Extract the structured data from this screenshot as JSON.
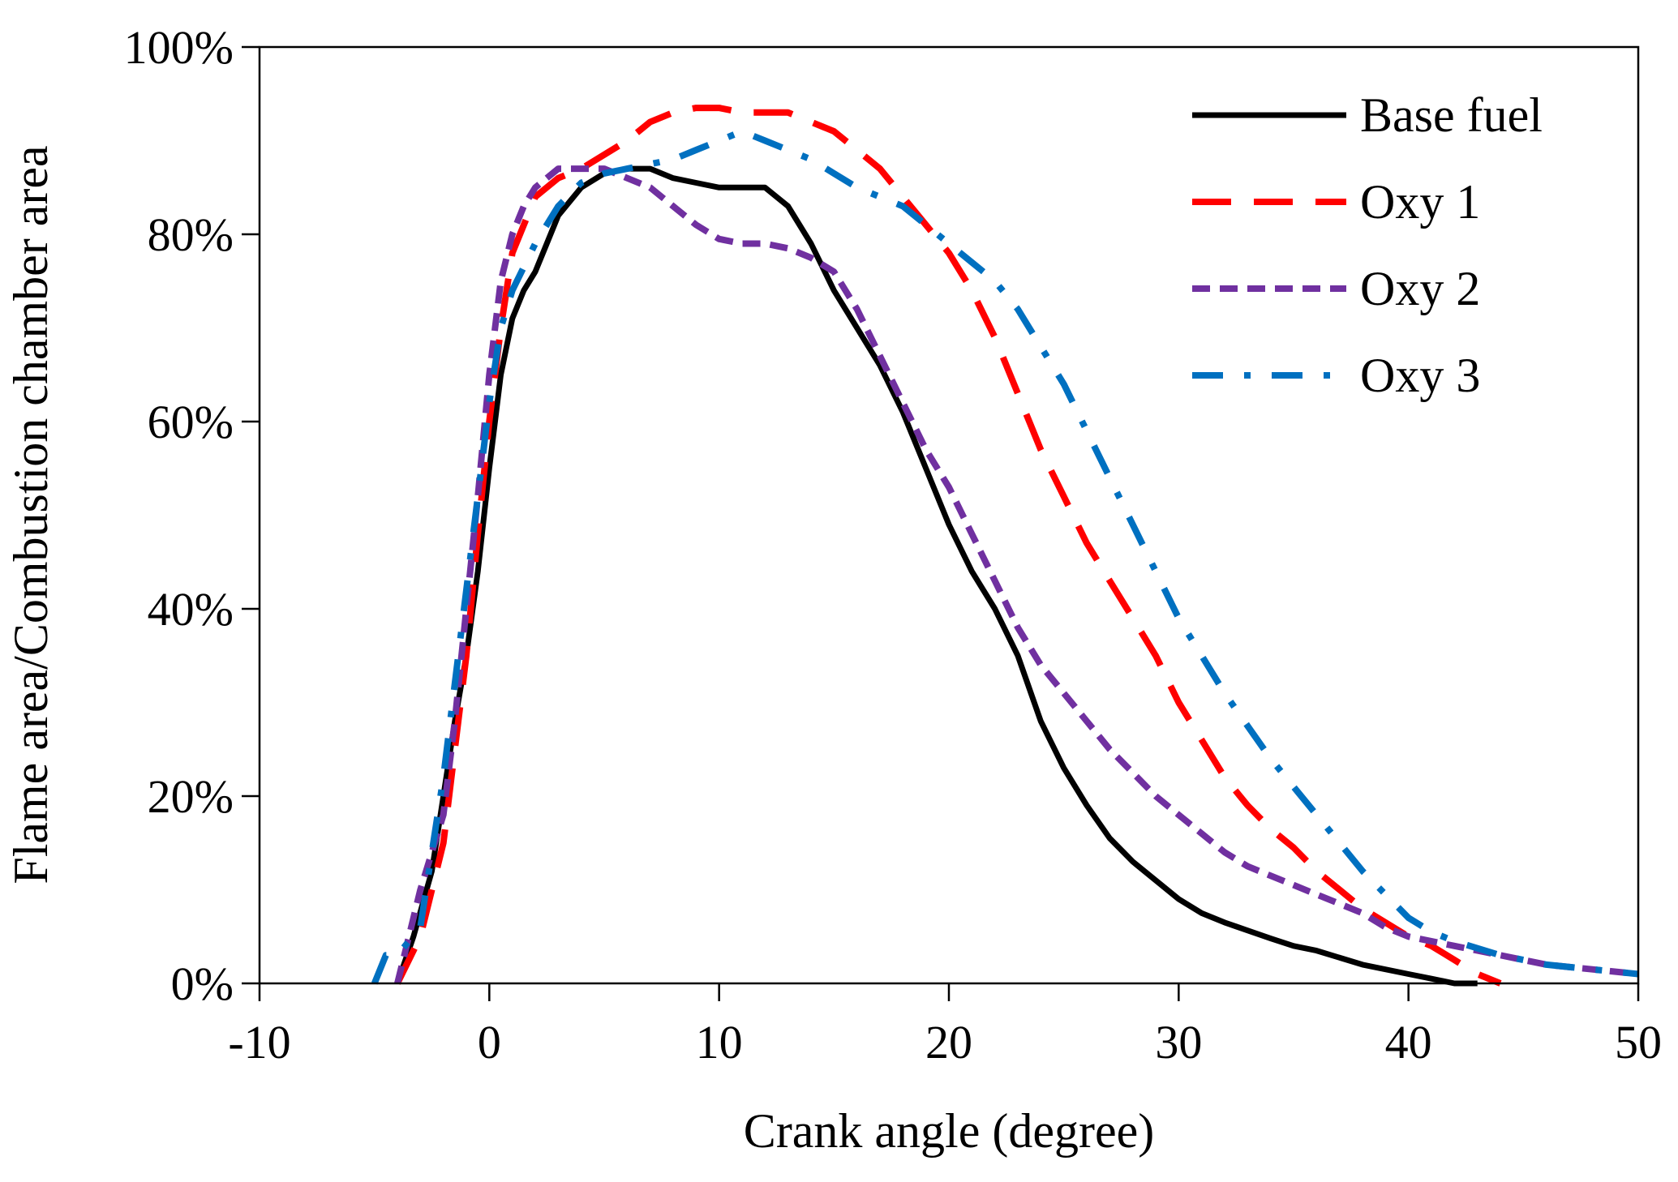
{
  "chart_data": {
    "type": "line",
    "title": "",
    "xlabel": "Crank angle (degree)",
    "ylabel": "Flame area/Combustion chamber area",
    "xlim": [
      -10,
      50
    ],
    "ylim": [
      0,
      100
    ],
    "xticks": [
      -10,
      0,
      10,
      20,
      30,
      40,
      50
    ],
    "yticks": [
      0,
      20,
      40,
      60,
      80,
      100
    ],
    "xtick_labels": [
      "-10",
      "0",
      "10",
      "20",
      "30",
      "40",
      "50"
    ],
    "ytick_labels": [
      "0%",
      "20%",
      "40%",
      "60%",
      "80%",
      "100%"
    ],
    "grid": false,
    "legend_position": "top-right",
    "series": [
      {
        "name": "Base fuel",
        "color": "#000000",
        "dash": "solid",
        "points": [
          [
            -4,
            0
          ],
          [
            -3.3,
            5
          ],
          [
            -2.5,
            12
          ],
          [
            -2,
            20
          ],
          [
            -1.5,
            28
          ],
          [
            -1,
            35
          ],
          [
            -0.5,
            44
          ],
          [
            0,
            55
          ],
          [
            0.5,
            65
          ],
          [
            1,
            71
          ],
          [
            1.5,
            74
          ],
          [
            2,
            76
          ],
          [
            2.5,
            79
          ],
          [
            3,
            82
          ],
          [
            4,
            85
          ],
          [
            5,
            86.5
          ],
          [
            6,
            87
          ],
          [
            7,
            87
          ],
          [
            8,
            86
          ],
          [
            9,
            85.5
          ],
          [
            10,
            85
          ],
          [
            11,
            85
          ],
          [
            12,
            85
          ],
          [
            13,
            83
          ],
          [
            14,
            79
          ],
          [
            15,
            74
          ],
          [
            16,
            70
          ],
          [
            17,
            66
          ],
          [
            18,
            61
          ],
          [
            19,
            55
          ],
          [
            20,
            49
          ],
          [
            21,
            44
          ],
          [
            22,
            40
          ],
          [
            23,
            35
          ],
          [
            24,
            28
          ],
          [
            25,
            23
          ],
          [
            26,
            19
          ],
          [
            27,
            15.5
          ],
          [
            28,
            13
          ],
          [
            30,
            9
          ],
          [
            31,
            7.5
          ],
          [
            32,
            6.5
          ],
          [
            34,
            4.8
          ],
          [
            35,
            4
          ],
          [
            36,
            3.5
          ],
          [
            38,
            2
          ],
          [
            40,
            1
          ],
          [
            41,
            0.5
          ],
          [
            42,
            0
          ],
          [
            43,
            0
          ]
        ]
      },
      {
        "name": "Oxy 1",
        "color": "#ff0000",
        "dash": "long-dash",
        "points": [
          [
            -4,
            0
          ],
          [
            -3,
            5
          ],
          [
            -2,
            15
          ],
          [
            -1.5,
            25
          ],
          [
            -1,
            35
          ],
          [
            -0.5,
            48
          ],
          [
            0,
            60
          ],
          [
            0.5,
            70
          ],
          [
            1,
            78
          ],
          [
            2,
            84
          ],
          [
            3,
            86
          ],
          [
            4,
            87
          ],
          [
            5,
            88.5
          ],
          [
            6,
            90
          ],
          [
            7,
            92
          ],
          [
            8,
            93
          ],
          [
            9,
            93.5
          ],
          [
            10,
            93.5
          ],
          [
            11,
            93
          ],
          [
            12,
            93
          ],
          [
            13,
            93
          ],
          [
            14,
            92
          ],
          [
            15,
            91
          ],
          [
            16,
            89
          ],
          [
            17,
            87
          ],
          [
            18,
            84
          ],
          [
            19,
            81
          ],
          [
            20,
            78
          ],
          [
            21,
            74
          ],
          [
            22,
            69
          ],
          [
            23,
            63
          ],
          [
            24,
            57
          ],
          [
            25,
            52
          ],
          [
            26,
            47
          ],
          [
            27,
            43
          ],
          [
            28,
            39
          ],
          [
            29,
            35
          ],
          [
            30,
            30
          ],
          [
            31,
            26
          ],
          [
            32,
            22
          ],
          [
            33,
            19
          ],
          [
            34,
            16.5
          ],
          [
            35,
            14.5
          ],
          [
            36,
            12
          ],
          [
            37,
            10
          ],
          [
            38,
            8
          ],
          [
            39,
            6.5
          ],
          [
            40,
            5
          ],
          [
            41,
            4
          ],
          [
            42,
            2.5
          ],
          [
            43,
            1
          ],
          [
            44,
            0
          ]
        ]
      },
      {
        "name": "Oxy 2",
        "color": "#7030a0",
        "dash": "short-dash",
        "points": [
          [
            -4,
            0
          ],
          [
            -3.5,
            5
          ],
          [
            -3,
            10
          ],
          [
            -2,
            18
          ],
          [
            -1.5,
            28
          ],
          [
            -1,
            40
          ],
          [
            -0.5,
            52
          ],
          [
            0,
            65
          ],
          [
            0.5,
            75
          ],
          [
            1,
            80
          ],
          [
            1.5,
            83
          ],
          [
            2,
            85
          ],
          [
            3,
            87
          ],
          [
            4,
            87
          ],
          [
            5,
            87
          ],
          [
            6,
            86
          ],
          [
            7,
            85
          ],
          [
            8,
            83
          ],
          [
            9,
            81
          ],
          [
            10,
            79.5
          ],
          [
            11,
            79
          ],
          [
            12,
            79
          ],
          [
            13,
            78.5
          ],
          [
            14,
            77.5
          ],
          [
            15,
            76
          ],
          [
            16,
            72
          ],
          [
            17,
            67
          ],
          [
            18,
            62
          ],
          [
            19,
            57
          ],
          [
            20,
            53
          ],
          [
            21,
            48
          ],
          [
            22,
            43
          ],
          [
            23,
            38
          ],
          [
            24,
            34
          ],
          [
            25,
            31
          ],
          [
            26,
            28
          ],
          [
            27,
            25
          ],
          [
            28,
            22.5
          ],
          [
            29,
            20
          ],
          [
            30,
            18
          ],
          [
            31,
            16
          ],
          [
            32,
            14
          ],
          [
            33,
            12.5
          ],
          [
            34,
            11.5
          ],
          [
            35,
            10.5
          ],
          [
            36,
            9.5
          ],
          [
            37,
            8.5
          ],
          [
            38,
            7.5
          ],
          [
            39,
            6
          ],
          [
            40,
            5
          ],
          [
            42,
            4
          ],
          [
            44,
            3
          ],
          [
            46,
            2
          ],
          [
            48,
            1.5
          ],
          [
            50,
            1
          ]
        ]
      },
      {
        "name": "Oxy 3",
        "color": "#0070c0",
        "dash": "dash-dot",
        "points": [
          [
            -5,
            0
          ],
          [
            -4.5,
            3
          ],
          [
            -4,
            3
          ],
          [
            -3,
            6
          ],
          [
            -2.5,
            14
          ],
          [
            -2,
            22
          ],
          [
            -1.5,
            32
          ],
          [
            -1,
            42
          ],
          [
            -0.5,
            52
          ],
          [
            0,
            62
          ],
          [
            0.5,
            70
          ],
          [
            1,
            74
          ],
          [
            2,
            79
          ],
          [
            3,
            83
          ],
          [
            4,
            85.5
          ],
          [
            5,
            86.5
          ],
          [
            6,
            87
          ],
          [
            7,
            87.5
          ],
          [
            8,
            88
          ],
          [
            9,
            89
          ],
          [
            10,
            90
          ],
          [
            11,
            91
          ],
          [
            12,
            90
          ],
          [
            13,
            89
          ],
          [
            14,
            88
          ],
          [
            15,
            86.5
          ],
          [
            16,
            85
          ],
          [
            17,
            84
          ],
          [
            18,
            83
          ],
          [
            19,
            81
          ],
          [
            20,
            79
          ],
          [
            21,
            77
          ],
          [
            22,
            75
          ],
          [
            23,
            72
          ],
          [
            24,
            68
          ],
          [
            25,
            64
          ],
          [
            26,
            59
          ],
          [
            27,
            54
          ],
          [
            28,
            49
          ],
          [
            29,
            44
          ],
          [
            30,
            39
          ],
          [
            31,
            35
          ],
          [
            32,
            31
          ],
          [
            33,
            27.5
          ],
          [
            34,
            24
          ],
          [
            35,
            21
          ],
          [
            36,
            18
          ],
          [
            37,
            15
          ],
          [
            38,
            12
          ],
          [
            39,
            9.5
          ],
          [
            40,
            7
          ],
          [
            41,
            5.5
          ],
          [
            42,
            4.5
          ],
          [
            44,
            3
          ],
          [
            46,
            2
          ],
          [
            48,
            1.5
          ],
          [
            50,
            1
          ]
        ]
      }
    ]
  }
}
